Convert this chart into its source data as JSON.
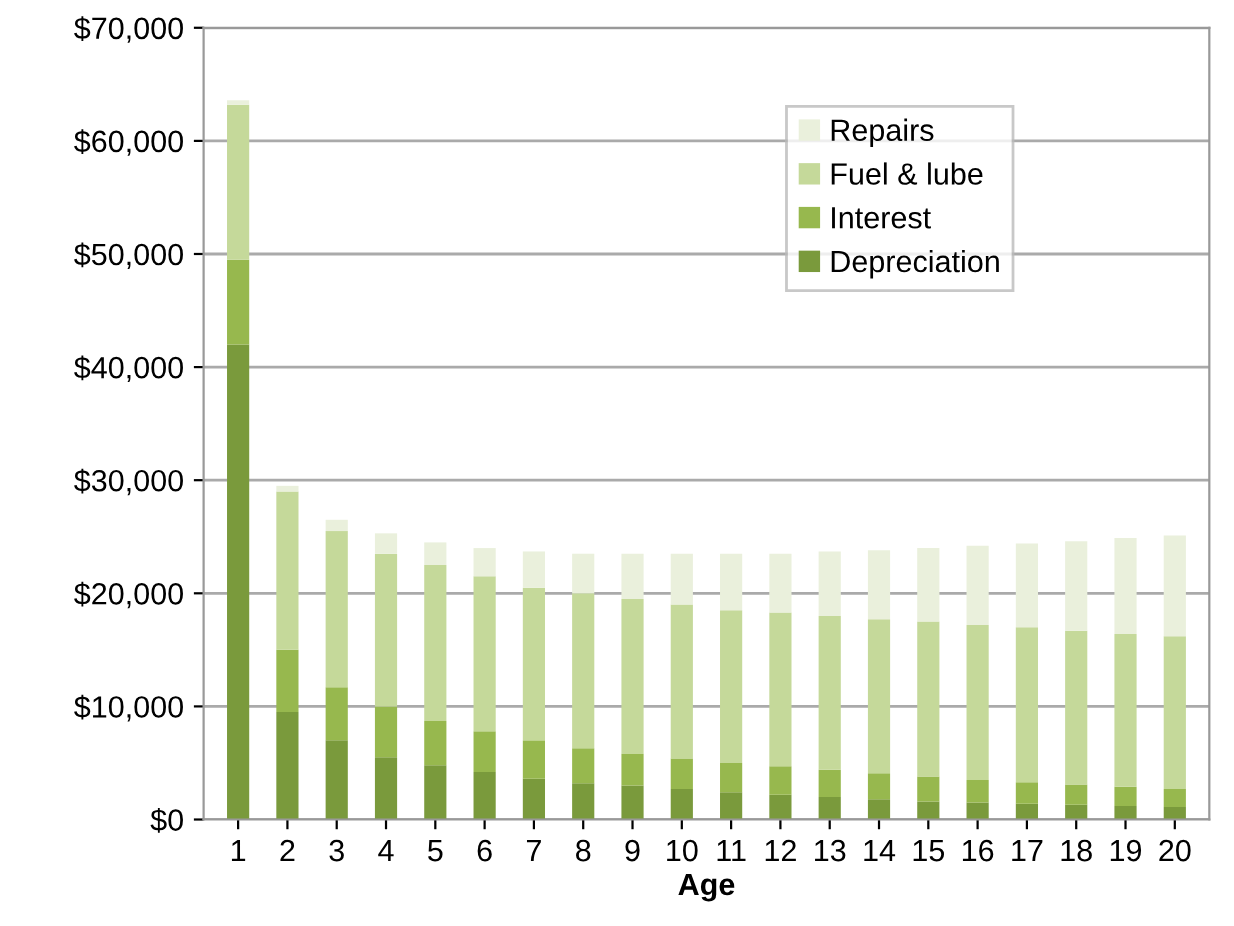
{
  "chart_data": {
    "type": "bar",
    "stacked": true,
    "xlabel": "Age",
    "categories": [
      "1",
      "2",
      "3",
      "4",
      "5",
      "6",
      "7",
      "8",
      "9",
      "10",
      "11",
      "12",
      "13",
      "14",
      "15",
      "16",
      "17",
      "18",
      "19",
      "20"
    ],
    "series": [
      {
        "name": "Depreciation",
        "color": "#7a9a3c",
        "values": [
          42000,
          9500,
          7000,
          5500,
          4800,
          4200,
          3600,
          3200,
          3000,
          2700,
          2400,
          2200,
          2000,
          1800,
          1600,
          1500,
          1400,
          1300,
          1200,
          1100
        ]
      },
      {
        "name": "Interest",
        "color": "#97b84e",
        "values": [
          7500,
          5500,
          4700,
          4500,
          3900,
          3600,
          3400,
          3100,
          2800,
          2700,
          2600,
          2500,
          2400,
          2300,
          2200,
          2000,
          1900,
          1800,
          1700,
          1600
        ]
      },
      {
        "name": "Fuel & lube",
        "color": "#c5d99a",
        "values": [
          13700,
          14000,
          13800,
          13500,
          13800,
          13700,
          13500,
          13700,
          13700,
          13600,
          13500,
          13600,
          13600,
          13600,
          13700,
          13700,
          13700,
          13600,
          13500,
          13500
        ]
      },
      {
        "name": "Repairs",
        "color": "#eaf0dc",
        "values": [
          400,
          500,
          1000,
          1800,
          2000,
          2500,
          3200,
          3500,
          4000,
          4500,
          5000,
          5200,
          5700,
          6100,
          6500,
          7000,
          7400,
          7900,
          8500,
          8900
        ]
      }
    ],
    "ylim": [
      0,
      70000
    ],
    "yticks": [
      {
        "value": 0,
        "label": "$0"
      },
      {
        "value": 10000,
        "label": "$10,000"
      },
      {
        "value": 20000,
        "label": "$20,000"
      },
      {
        "value": 30000,
        "label": "$30,000"
      },
      {
        "value": 40000,
        "label": "$40,000"
      },
      {
        "value": 50000,
        "label": "$50,000"
      },
      {
        "value": 60000,
        "label": "$60,000"
      },
      {
        "value": 70000,
        "label": "$70,000"
      }
    ],
    "grid": "y",
    "legend": "top right"
  }
}
